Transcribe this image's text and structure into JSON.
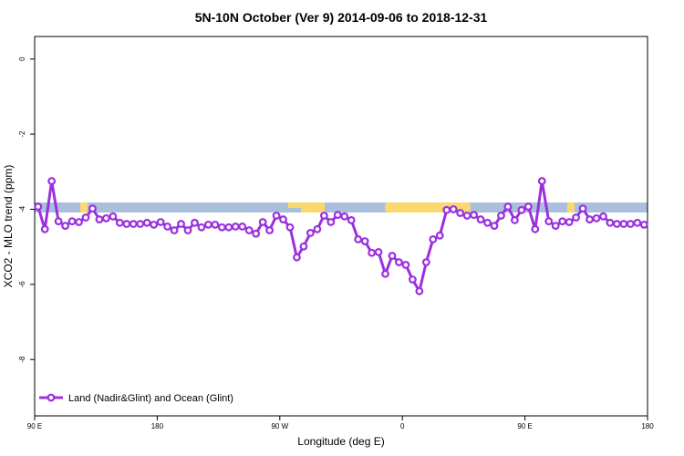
{
  "chart_data": {
    "type": "line",
    "title": "5N-10N October (Ver 9)   2014-09-06 to 2018-12-31",
    "x_label": "Longitude (deg E)",
    "y_label": "XCO2 - MLO trend (ppm)",
    "xlim": [
      90,
      540
    ],
    "ylim": [
      -9.5,
      0.6
    ],
    "xticks": [
      {
        "value": 90,
        "label": "90 E"
      },
      180,
      {
        "value": 270,
        "label": "90 W"
      },
      {
        "value": 360,
        "label": "0"
      },
      {
        "value": 450,
        "label": "90 E"
      },
      {
        "value": 540,
        "label": "180"
      }
    ],
    "yticks": [
      0,
      -2,
      -4,
      -6,
      -8
    ],
    "legend": "lower left",
    "x": [
      92.5,
      97.5,
      102.5,
      107.5,
      112.5,
      117.5,
      122.5,
      127.5,
      132.5,
      137.5,
      142.5,
      147.5,
      152.5,
      157.5,
      162.5,
      167.5,
      172.5,
      177.5,
      182.5,
      187.5,
      192.5,
      197.5,
      202.5,
      207.5,
      212.5,
      217.5,
      222.5,
      227.5,
      232.5,
      237.5,
      242.5,
      247.5,
      252.5,
      257.5,
      262.5,
      267.5,
      272.5,
      277.5,
      282.5,
      287.5,
      292.5,
      297.5,
      302.5,
      307.5,
      312.5,
      317.5,
      322.5,
      327.5,
      332.5,
      337.5,
      342.5,
      347.5,
      352.5,
      357.5,
      362.5,
      367.5,
      372.5,
      377.5,
      382.5,
      387.5,
      392.5,
      397.5,
      402.5,
      407.5,
      412.5,
      417.5,
      422.5,
      427.5,
      432.5,
      437.5,
      442.5,
      447.5,
      452.5,
      457.5,
      462.5,
      467.5,
      472.5,
      477.5,
      482.5,
      487.5,
      492.5,
      497.5,
      502.5,
      507.5,
      512.5,
      517.5,
      522.5,
      527.5,
      532.5,
      537.5
    ],
    "series": [
      {
        "name": "Land (Nadir&Glint) and Ocean (Glint)",
        "color": "#9b30e0",
        "values": [
          -3.93,
          -4.53,
          -3.25,
          -4.32,
          -4.44,
          -4.32,
          -4.34,
          -4.22,
          -3.98,
          -4.27,
          -4.24,
          -4.19,
          -4.36,
          -4.39,
          -4.39,
          -4.39,
          -4.36,
          -4.41,
          -4.34,
          -4.46,
          -4.56,
          -4.39,
          -4.56,
          -4.36,
          -4.48,
          -4.41,
          -4.41,
          -4.48,
          -4.48,
          -4.46,
          -4.46,
          -4.56,
          -4.65,
          -4.34,
          -4.56,
          -4.17,
          -4.27,
          -4.48,
          -5.28,
          -4.99,
          -4.63,
          -4.53,
          -4.17,
          -4.34,
          -4.15,
          -4.19,
          -4.29,
          -4.8,
          -4.85,
          -5.16,
          -5.14,
          -5.72,
          -5.24,
          -5.41,
          -5.48,
          -5.87,
          -6.18,
          -5.41,
          -4.8,
          -4.7,
          -4.02,
          -4.0,
          -4.1,
          -4.17,
          -4.15,
          -4.27,
          -4.36,
          -4.44,
          -4.17,
          -3.93,
          -4.29,
          -4.02,
          -3.93,
          -4.53,
          -3.25,
          -4.32,
          -4.44,
          -4.32,
          -4.34,
          -4.22,
          -3.98,
          -4.27,
          -4.24,
          -4.19,
          -4.36,
          -4.39,
          -4.39,
          -4.39,
          -4.36,
          -4.41
        ]
      }
    ]
  }
}
